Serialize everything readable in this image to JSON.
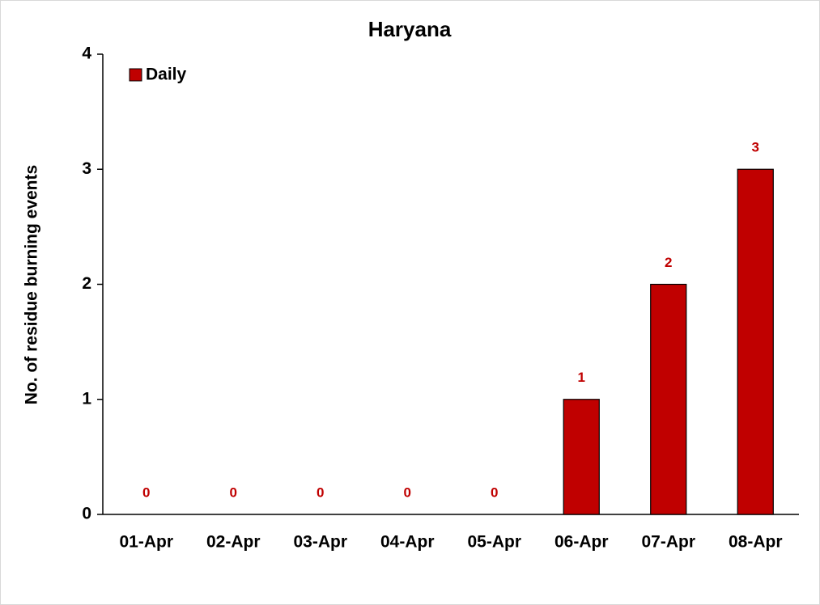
{
  "chart_data": {
    "type": "bar",
    "title": "Haryana",
    "y_label": "No. of residue burning events",
    "categories": [
      "01-Apr",
      "02-Apr",
      "03-Apr",
      "04-Apr",
      "05-Apr",
      "06-Apr",
      "07-Apr",
      "08-Apr"
    ],
    "series": [
      {
        "name": "Daily",
        "color": "#c00000",
        "values": [
          0,
          0,
          0,
          0,
          0,
          1,
          2,
          3
        ]
      }
    ],
    "ylim": [
      0,
      4
    ],
    "yticks": [
      0,
      1,
      2,
      3,
      4
    ],
    "grid": false,
    "legend": "upper left",
    "data_labels": true
  }
}
